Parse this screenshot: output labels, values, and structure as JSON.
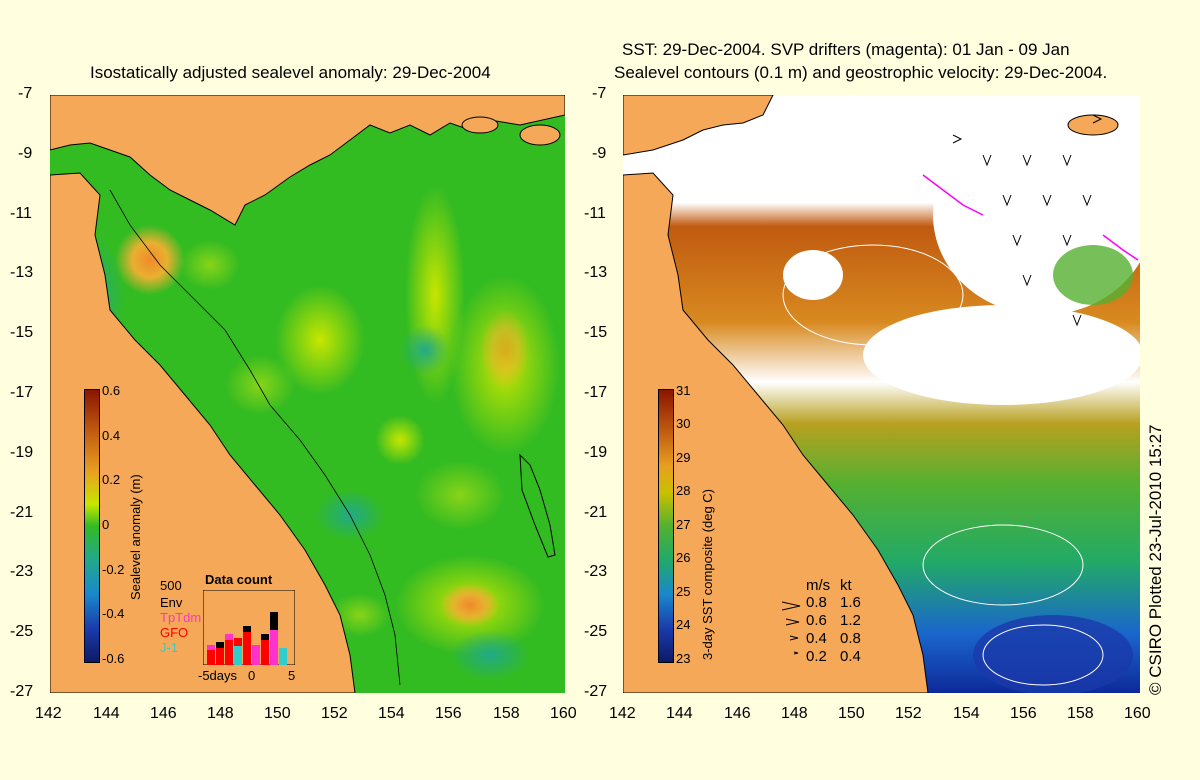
{
  "left_panel": {
    "title": "Isostatically adjusted sealevel anomaly: 29-Dec-2004",
    "colorbar": {
      "label": "Sealevel anomaly (m)",
      "ticks": [
        "0.6",
        "0.4",
        "0.2",
        "0",
        "-0.2",
        "-0.4",
        "-0.6"
      ]
    },
    "data_count": {
      "title": "Data count",
      "max_label": "500",
      "sources": [
        {
          "name": "Env",
          "color": "#000000"
        },
        {
          "name": "TpTdm",
          "color": "#ff33cc"
        },
        {
          "name": "GFO",
          "color": "#ff0000"
        },
        {
          "name": "J-1",
          "color": "#33cccc"
        }
      ],
      "axis_labels": [
        "-5days",
        "0",
        "5"
      ]
    }
  },
  "right_panel": {
    "title_line1": "SST: 29-Dec-2004. SVP drifters (magenta): 01 Jan - 09 Jan",
    "title_line2": "Sealevel contours (0.1 m) and geostrophic velocity: 29-Dec-2004.",
    "colorbar": {
      "label": "3-day SST composite (deg C)",
      "ticks": [
        "31",
        "30",
        "29",
        "28",
        "27",
        "26",
        "25",
        "24",
        "23"
      ]
    },
    "velocity_legend": {
      "header_ms": "m/s",
      "header_kt": "kt",
      "rows": [
        {
          "ms": "0.8",
          "kt": "1.6"
        },
        {
          "ms": "0.6",
          "kt": "1.2"
        },
        {
          "ms": "0.4",
          "kt": "0.8"
        },
        {
          "ms": "0.2",
          "kt": "0.4"
        }
      ]
    },
    "credit": "© CSIRO Plotted 23-Jul-2010 15:27"
  },
  "axes": {
    "lat_ticks": [
      "-7",
      "-9",
      "-11",
      "-13",
      "-15",
      "-17",
      "-19",
      "-21",
      "-23",
      "-25",
      "-27"
    ],
    "lon_ticks": [
      "142",
      "144",
      "146",
      "148",
      "150",
      "152",
      "154",
      "156",
      "158",
      "160"
    ]
  },
  "colors": {
    "background": "#ffffe0",
    "land": "#f5a857",
    "ocean_base": "#33bb22",
    "missing_data": "#ffffff"
  }
}
